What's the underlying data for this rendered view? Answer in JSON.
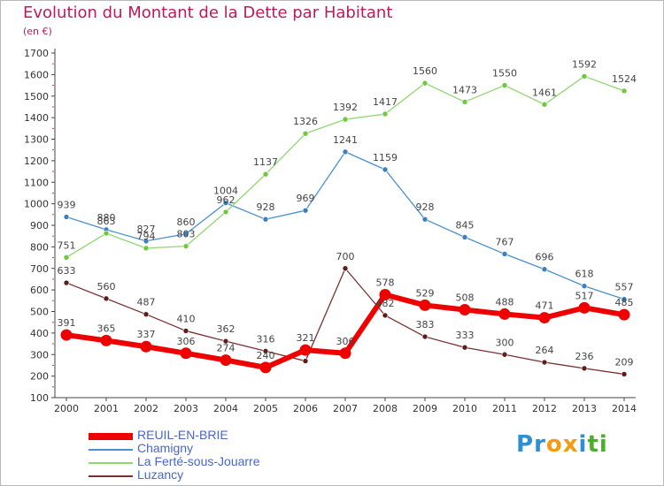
{
  "title": "Evolution du Montant de la Dette par Habitant",
  "subtitle": "(en €)",
  "logo_letters": [
    "P",
    "r",
    "o",
    "x",
    "i",
    "t",
    "i"
  ],
  "logo_colors": [
    "#2f8fd6",
    "#2f8fd6",
    "#f39c12",
    "#f39c12",
    "#2f8fd6",
    "#4caf2a",
    "#4caf2a"
  ],
  "chart_data": {
    "type": "line",
    "x": [
      "2000",
      "2001",
      "2002",
      "2003",
      "2004",
      "2005",
      "2006",
      "2007",
      "2008",
      "2009",
      "2010",
      "2011",
      "2012",
      "2013",
      "2014"
    ],
    "ylim": [
      100,
      1700
    ],
    "yticks": [
      100,
      200,
      300,
      400,
      500,
      600,
      700,
      800,
      900,
      1000,
      1100,
      1200,
      1300,
      1400,
      1500,
      1600,
      1700
    ],
    "grid": false,
    "legend_position": "bottom-left",
    "series": [
      {
        "name": "REUIL-EN-BRIE",
        "color": "#ee0000",
        "marker_color": "#ee0000",
        "width": 6,
        "values": [
          391,
          365,
          337,
          306,
          274,
          240,
          321,
          306,
          578,
          529,
          508,
          488,
          471,
          517,
          485
        ],
        "labels": [
          "391",
          "365",
          "337",
          "306",
          "274",
          "240",
          "321",
          "306",
          "578",
          "529",
          "508",
          "488",
          "471",
          "517",
          "485"
        ]
      },
      {
        "name": "Chamigny",
        "color": "#4a90d0",
        "marker_color": "#3a7fc4",
        "width": 1.3,
        "values": [
          939,
          880,
          827,
          860,
          1004,
          928,
          969,
          1241,
          1159,
          928,
          845,
          767,
          696,
          618,
          557
        ],
        "labels": [
          "939",
          "880",
          "827",
          "860",
          "1004",
          "928",
          "969",
          "1241",
          "1159",
          "928",
          "845",
          "767",
          "696",
          "618",
          "557"
        ]
      },
      {
        "name": "La Ferté-sous-Jouarre",
        "color": "#8fd870",
        "marker_color": "#6cc93b",
        "width": 1.3,
        "values": [
          751,
          863,
          794,
          803,
          962,
          1137,
          1326,
          1392,
          1417,
          1560,
          1473,
          1550,
          1461,
          1592,
          1524
        ],
        "labels": [
          "751",
          "863",
          "794",
          "803",
          "962",
          "1137",
          "1326",
          "1392",
          "1417",
          "1560",
          "1473",
          "1550",
          "1461",
          "1592",
          "1524"
        ]
      },
      {
        "name": "Luzancy",
        "color": "#7a3030",
        "marker_color": "#5e1c1c",
        "width": 1.3,
        "values": [
          633,
          560,
          487,
          410,
          362,
          316,
          270,
          700,
          482,
          383,
          333,
          300,
          264,
          236,
          209
        ],
        "labels": [
          "633",
          "560",
          "487",
          "410",
          "362",
          "316",
          "",
          "700",
          "482",
          "383",
          "333",
          "300",
          "264",
          "236",
          "209"
        ]
      }
    ]
  }
}
